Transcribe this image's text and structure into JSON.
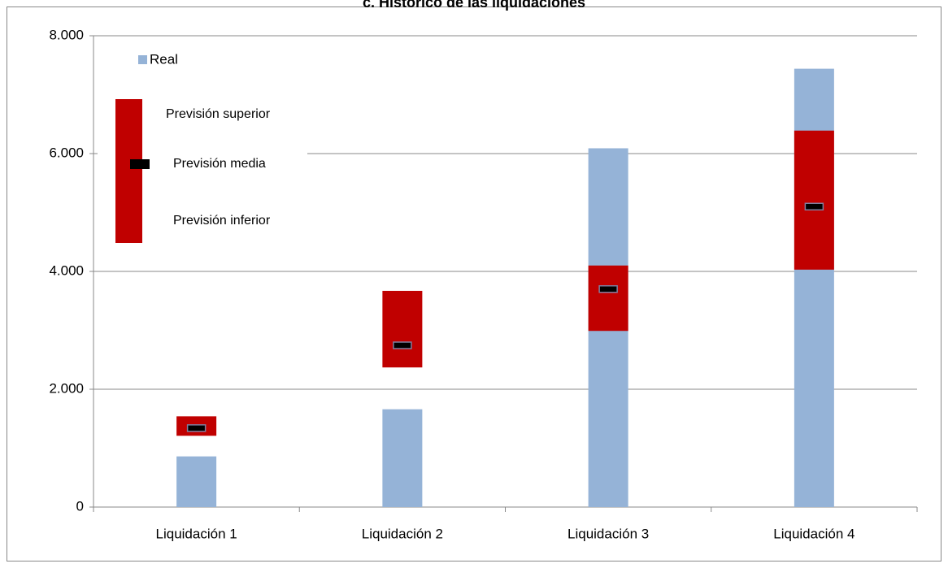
{
  "chart_data": {
    "type": "range_bar",
    "title": "c. Histórico de las liquidaciones",
    "categories": [
      "Liquidación 1",
      "Liquidación 2",
      "Liquidación 3",
      "Liquidación 4"
    ],
    "series": [
      {
        "name": "Real",
        "color": "#95b3d7",
        "values": [
          860,
          1660,
          6090,
          7440
        ]
      },
      {
        "name": "Previsión superior",
        "color": "#c00000",
        "values": [
          1540,
          3670,
          4100,
          6390
        ]
      },
      {
        "name": "Previsión media",
        "color": "#000000",
        "values": [
          1340,
          2745,
          3700,
          5100
        ]
      },
      {
        "name": "Previsión inferior",
        "color": "#c00000",
        "values": [
          1210,
          2370,
          2990,
          4030
        ]
      }
    ],
    "ylim": [
      0,
      8000
    ],
    "yticks": [
      {
        "value": 0,
        "label": "0"
      },
      {
        "value": 2000,
        "label": "2.000"
      },
      {
        "value": 4000,
        "label": "4.000"
      },
      {
        "value": 6000,
        "label": "6.000"
      },
      {
        "value": 8000,
        "label": "8.000"
      }
    ],
    "grid": true
  }
}
